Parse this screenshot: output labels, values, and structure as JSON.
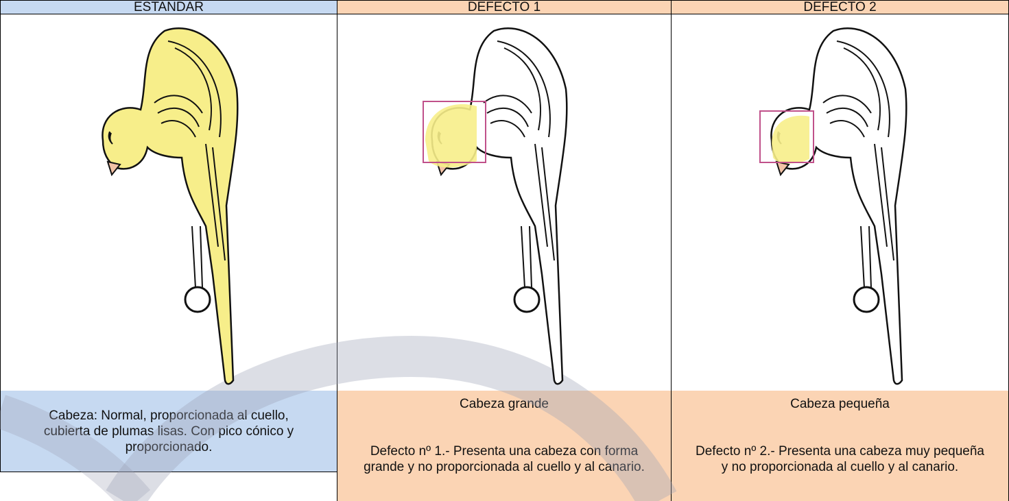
{
  "columns": [
    {
      "header": "ESTANDAR",
      "description": "Cabeza: Normal, proporcionada al cuello, cubierta de plumas lisas. Con pico cónico y proporcionado."
    },
    {
      "header": "DEFECTO 1",
      "caption": "Cabeza grande",
      "description": "Defecto nº 1.- Presenta una cabeza con forma grande y no proporcionada al cuello y al canario."
    },
    {
      "header": "DEFECTO 2",
      "caption": "Cabeza pequeña",
      "description": "Defecto nº 2.- Presenta una cabeza muy pequeña y no proporcionada al cuello y al canario."
    }
  ]
}
